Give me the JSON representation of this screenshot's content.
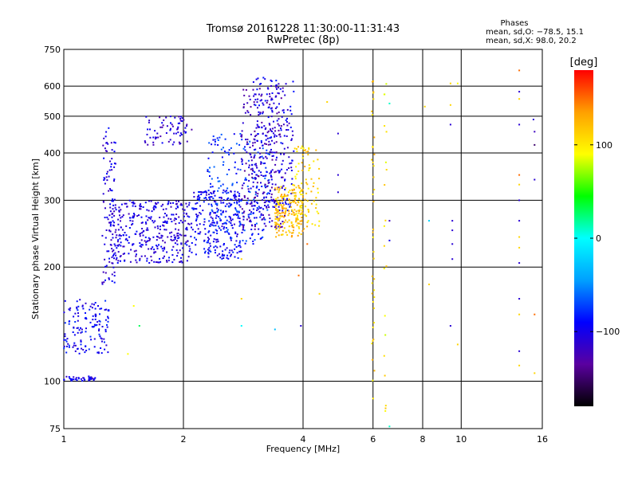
{
  "chart_data": {
    "type": "scatter",
    "title": "Tromsø 20161228 11:30:00-11:31:43",
    "subtitle": "RwPretec (8p)",
    "xlabel": "Frequency [MHz]",
    "ylabel": "Stationary phase Virtual Height [km]",
    "x_scale": "log",
    "y_scale": "log",
    "xlim": [
      1,
      16
    ],
    "ylim": [
      75,
      750
    ],
    "x_ticks": [
      1,
      2,
      4,
      6,
      8,
      10,
      16
    ],
    "y_ticks": [
      75,
      100,
      200,
      300,
      400,
      500,
      600,
      750
    ],
    "x_tick_labels": [
      "1",
      "2",
      "4",
      "6",
      "8",
      "10",
      "16"
    ],
    "y_tick_labels": [
      "75",
      "100",
      "200",
      "300",
      "400",
      "500",
      "600",
      "750"
    ],
    "grid": true,
    "stats": {
      "heading": "Phases",
      "line_o": "mean, sd,O: −78.5, 15.1",
      "line_x": "mean, sd,X:  98.0, 20.2"
    },
    "colorbar": {
      "label": "[deg]",
      "range": [
        -180,
        180
      ],
      "ticks": [
        100,
        0,
        -100
      ],
      "tick_labels": [
        "100",
        "0",
        "−100"
      ],
      "colors": [
        "#000000",
        "#5a00a0",
        "#0000ff",
        "#00a0ff",
        "#00ffff",
        "#00ff00",
        "#ffff00",
        "#ffa000",
        "#ff0000"
      ]
    },
    "clusters": [
      {
        "x": [
          1.0,
          1.2
        ],
        "y": [
          100,
          103
        ],
        "phase": -100,
        "n": 40
      },
      {
        "x": [
          1.0,
          1.3
        ],
        "y": [
          118,
          165
        ],
        "phase": -95,
        "n": 140
      },
      {
        "x": [
          1.25,
          1.35
        ],
        "y": [
          180,
          470
        ],
        "phase": -105,
        "n": 90
      },
      {
        "x": [
          1.3,
          2.1
        ],
        "y": [
          205,
          300
        ],
        "phase": -105,
        "n": 380
      },
      {
        "x": [
          1.6,
          2.1
        ],
        "y": [
          420,
          500
        ],
        "phase": -110,
        "n": 70
      },
      {
        "x": [
          2.1,
          2.8
        ],
        "y": [
          210,
          320
        ],
        "phase": -95,
        "n": 260
      },
      {
        "x": [
          2.3,
          3.3
        ],
        "y": [
          230,
          450
        ],
        "phase": -80,
        "n": 220
      },
      {
        "x": [
          2.8,
          3.6
        ],
        "y": [
          250,
          600
        ],
        "phase": -120,
        "n": 260
      },
      {
        "x": [
          3.0,
          3.8
        ],
        "y": [
          280,
          640
        ],
        "phase": -100,
        "n": 180
      },
      {
        "x": [
          3.4,
          4.0
        ],
        "y": [
          240,
          330
        ],
        "phase": 120,
        "n": 190
      },
      {
        "x": [
          3.8,
          4.4
        ],
        "y": [
          250,
          420
        ],
        "phase": 110,
        "n": 90
      },
      {
        "x": [
          5.95,
          6.05
        ],
        "y": [
          80,
          650
        ],
        "phase": 110,
        "n": 40
      },
      {
        "x": [
          6.4,
          6.5
        ],
        "y": [
          80,
          620
        ],
        "phase": 100,
        "n": 20
      }
    ],
    "scattered_points": [
      {
        "x": 1.5,
        "y": 158,
        "phase": 90
      },
      {
        "x": 1.55,
        "y": 140,
        "phase": 30
      },
      {
        "x": 1.45,
        "y": 118,
        "phase": 90
      },
      {
        "x": 2.8,
        "y": 210,
        "phase": 110
      },
      {
        "x": 2.8,
        "y": 165,
        "phase": 110
      },
      {
        "x": 2.8,
        "y": 140,
        "phase": 0
      },
      {
        "x": 3.4,
        "y": 137,
        "phase": -30
      },
      {
        "x": 3.95,
        "y": 140,
        "phase": -110
      },
      {
        "x": 3.9,
        "y": 190,
        "phase": 150
      },
      {
        "x": 4.1,
        "y": 230,
        "phase": 150
      },
      {
        "x": 4.4,
        "y": 170,
        "phase": 110
      },
      {
        "x": 4.6,
        "y": 545,
        "phase": 110
      },
      {
        "x": 4.9,
        "y": 450,
        "phase": -110
      },
      {
        "x": 4.9,
        "y": 350,
        "phase": -110
      },
      {
        "x": 4.9,
        "y": 315,
        "phase": -110
      },
      {
        "x": 6.6,
        "y": 540,
        "phase": 10
      },
      {
        "x": 6.6,
        "y": 265,
        "phase": -120
      },
      {
        "x": 6.6,
        "y": 235,
        "phase": -100
      },
      {
        "x": 6.6,
        "y": 76,
        "phase": 10
      },
      {
        "x": 8.1,
        "y": 530,
        "phase": 110
      },
      {
        "x": 8.3,
        "y": 265,
        "phase": -20
      },
      {
        "x": 8.3,
        "y": 180,
        "phase": 110
      },
      {
        "x": 9.4,
        "y": 610,
        "phase": 110
      },
      {
        "x": 9.4,
        "y": 535,
        "phase": 110
      },
      {
        "x": 9.4,
        "y": 475,
        "phase": -110
      },
      {
        "x": 9.5,
        "y": 265,
        "phase": -110
      },
      {
        "x": 9.5,
        "y": 250,
        "phase": -110
      },
      {
        "x": 9.5,
        "y": 230,
        "phase": -110
      },
      {
        "x": 9.5,
        "y": 210,
        "phase": -110
      },
      {
        "x": 9.4,
        "y": 140,
        "phase": -110
      },
      {
        "x": 9.8,
        "y": 125,
        "phase": 110
      },
      {
        "x": 9.8,
        "y": 610,
        "phase": 90
      },
      {
        "x": 14.0,
        "y": 660,
        "phase": 150
      },
      {
        "x": 14.0,
        "y": 580,
        "phase": -110
      },
      {
        "x": 14.0,
        "y": 555,
        "phase": 110
      },
      {
        "x": 14.0,
        "y": 475,
        "phase": -110
      },
      {
        "x": 14.0,
        "y": 350,
        "phase": 150
      },
      {
        "x": 14.0,
        "y": 330,
        "phase": 110
      },
      {
        "x": 14.0,
        "y": 300,
        "phase": -110
      },
      {
        "x": 14.0,
        "y": 265,
        "phase": -110
      },
      {
        "x": 14.0,
        "y": 240,
        "phase": 110
      },
      {
        "x": 14.0,
        "y": 225,
        "phase": 110
      },
      {
        "x": 14.0,
        "y": 205,
        "phase": -110
      },
      {
        "x": 14.0,
        "y": 165,
        "phase": -110
      },
      {
        "x": 14.0,
        "y": 150,
        "phase": 110
      },
      {
        "x": 14.0,
        "y": 120,
        "phase": -110
      },
      {
        "x": 14.0,
        "y": 110,
        "phase": 110
      },
      {
        "x": 15.2,
        "y": 490,
        "phase": -110
      },
      {
        "x": 15.3,
        "y": 455,
        "phase": -120
      },
      {
        "x": 15.3,
        "y": 420,
        "phase": -150
      },
      {
        "x": 15.3,
        "y": 340,
        "phase": -110
      },
      {
        "x": 15.3,
        "y": 150,
        "phase": 150
      },
      {
        "x": 15.3,
        "y": 105,
        "phase": 110
      }
    ]
  }
}
